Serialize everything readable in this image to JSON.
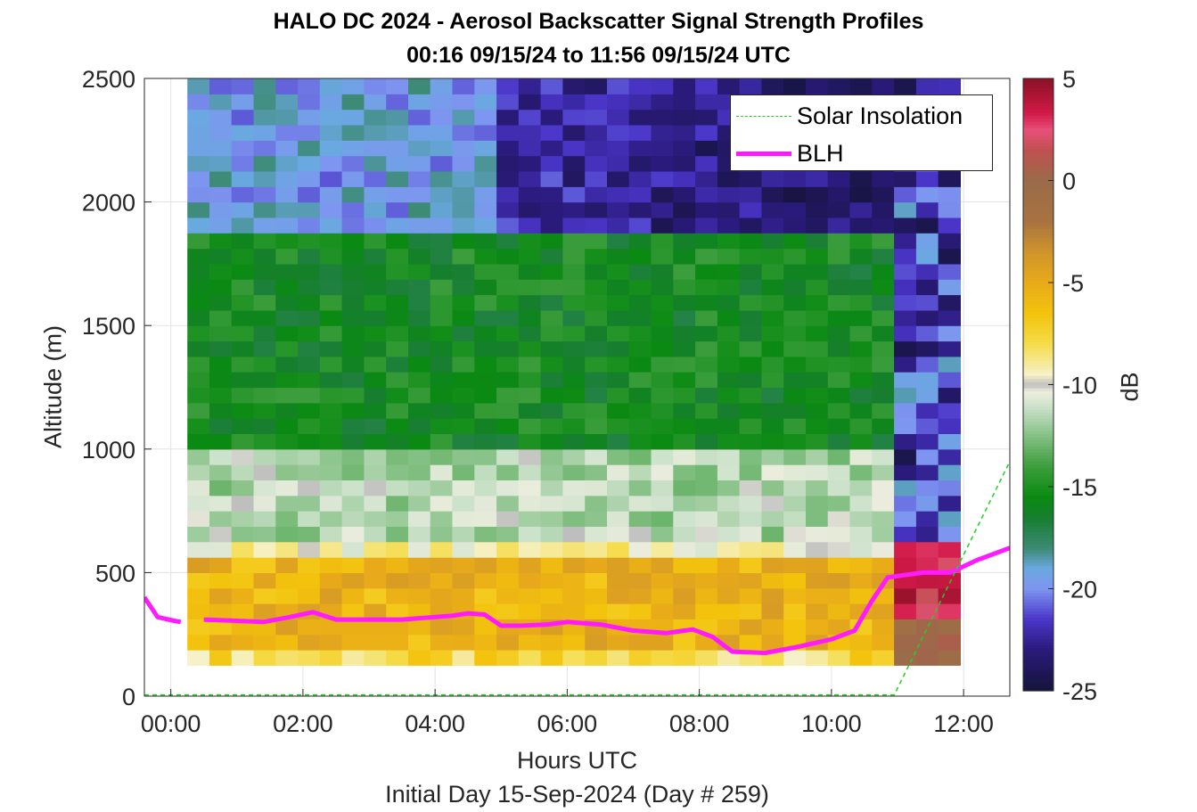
{
  "title": {
    "line1": "HALO DC 2024 - Aerosol Backscatter Signal Strength Profiles",
    "line2": "00:16 09/15/24 to 11:56 09/15/24  UTC"
  },
  "chart_data": {
    "type": "heatmap",
    "xlabel": "Hours UTC",
    "xsublabel": "Initial Day 15-Sep-2024 (Day # 259)",
    "ylabel": "Altitude (m)",
    "colorbar_label": "dB",
    "xlim": [
      -0.4,
      12.7
    ],
    "ylim": [
      0,
      2500
    ],
    "clim": [
      -25,
      5
    ],
    "xticks": [
      0,
      2,
      4,
      6,
      8,
      10,
      12
    ],
    "xtick_labels": [
      "00:00",
      "02:00",
      "04:00",
      "06:00",
      "08:00",
      "10:00",
      "12:00"
    ],
    "yticks": [
      0,
      500,
      1000,
      1500,
      2000,
      2500
    ],
    "ytick_labels": [
      "0",
      "500",
      "1000",
      "1500",
      "2000",
      "2500"
    ],
    "cticks": [
      5,
      0,
      -5,
      -10,
      -15,
      -20,
      -25
    ],
    "ctick_labels": [
      "5",
      "0",
      "-5",
      "-10",
      "-15",
      "-20",
      "-25"
    ],
    "grid": true,
    "legend_position": "top-right",
    "legend": [
      "Solar Insolation",
      "BLH"
    ],
    "data_x_range": [
      0.25,
      11.95
    ],
    "data_y_range": [
      125,
      2500
    ],
    "height_profile_approx": [
      {
        "altitude_range": [
          125,
          600
        ],
        "value_db": -5
      },
      {
        "altitude_range": [
          600,
          1000
        ],
        "value_db": -11
      },
      {
        "altitude_range": [
          1000,
          1900
        ],
        "value_db": -15
      },
      {
        "altitude_range": [
          1900,
          2500
        ],
        "value_db": -20
      }
    ],
    "series": [
      {
        "name": "BLH",
        "color": "#ff1aff",
        "x": [
          -0.4,
          -0.2,
          0.05,
          0.15,
          null,
          0.5,
          1.0,
          1.4,
          1.8,
          2.15,
          2.5,
          3.0,
          3.5,
          4.0,
          4.25,
          4.5,
          4.75,
          5.0,
          5.3,
          5.7,
          6.0,
          6.5,
          7.0,
          7.5,
          7.9,
          8.2,
          8.5,
          9.0,
          9.5,
          10.0,
          10.35,
          10.6,
          10.85,
          11.1,
          11.4,
          11.8,
          12.2,
          12.7
        ],
        "y": [
          400,
          320,
          305,
          300,
          null,
          310,
          305,
          300,
          320,
          340,
          310,
          310,
          310,
          320,
          325,
          335,
          330,
          285,
          285,
          290,
          300,
          290,
          265,
          255,
          270,
          240,
          180,
          175,
          200,
          230,
          265,
          380,
          480,
          490,
          500,
          500,
          550,
          600
        ]
      },
      {
        "name": "Solar Insolation",
        "color": "#1fd11f",
        "x": [
          -0.4,
          10.95,
          12.7
        ],
        "y": [
          5,
          5,
          950
        ]
      }
    ]
  }
}
